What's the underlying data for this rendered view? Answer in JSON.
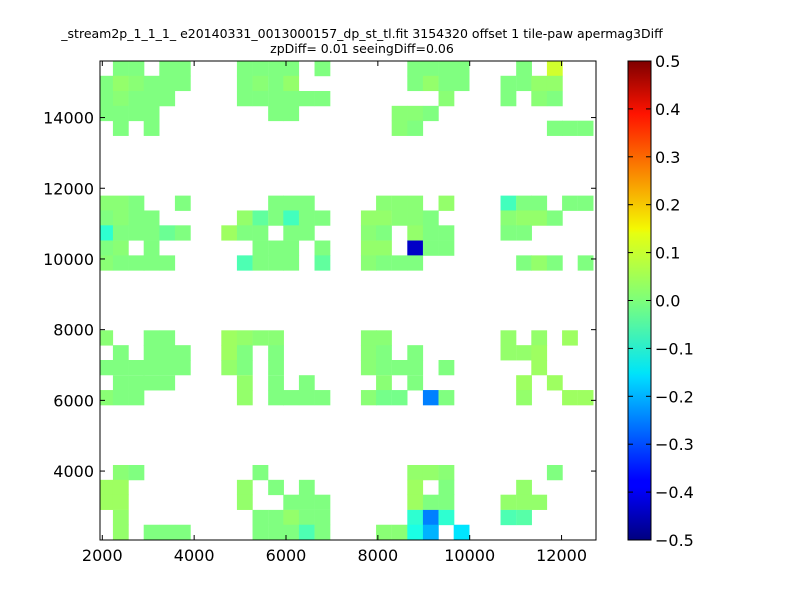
{
  "chart_data": {
    "type": "heatmap",
    "title_line1": "_stream2p_1_1_1_ e20140331_0013000157_dp_st_tl.fit 3154320 offset 1 tile-paw apermag3Diff",
    "title_line2": "zpDiff= 0.01 seeingDiff=0.06",
    "xlabel": "",
    "ylabel": "",
    "xlim": [
      1950,
      12750
    ],
    "ylim": [
      2050,
      15600
    ],
    "x_ticks": [
      2000,
      4000,
      6000,
      8000,
      10000,
      12000
    ],
    "y_ticks": [
      4000,
      6000,
      8000,
      10000,
      12000,
      14000
    ],
    "cell_width": 337.5,
    "cell_height": 423.5,
    "colorbar": {
      "colormap": "jet",
      "range": [
        -0.5,
        0.5
      ],
      "ticks": [
        "0.5",
        "0.4",
        "0.3",
        "0.2",
        "0.1",
        "0.0",
        "−0.1",
        "−0.2",
        "−0.3",
        "−0.4",
        "−0.5"
      ]
    },
    "cells": [
      [
        2400,
        15390,
        0.0
      ],
      [
        2740,
        15390,
        0.0
      ],
      [
        3410,
        15390,
        0.0
      ],
      [
        3750,
        15390,
        0.0
      ],
      [
        5100,
        15390,
        0.0
      ],
      [
        5440,
        15390,
        0.0
      ],
      [
        5780,
        15390,
        0.0
      ],
      [
        6110,
        15390,
        0.0
      ],
      [
        6790,
        15390,
        0.0
      ],
      [
        8810,
        15390,
        0.0
      ],
      [
        9150,
        15390,
        0.0
      ],
      [
        9490,
        15390,
        0.0
      ],
      [
        9820,
        15390,
        0.0
      ],
      [
        11180,
        15390,
        0.0
      ],
      [
        11850,
        15390,
        0.08
      ],
      [
        2060,
        14970,
        0.0
      ],
      [
        2400,
        14970,
        0.02
      ],
      [
        2740,
        14970,
        0.01
      ],
      [
        3070,
        14970,
        0.0
      ],
      [
        3410,
        14970,
        0.0
      ],
      [
        3750,
        14970,
        0.0
      ],
      [
        5100,
        14970,
        0.0
      ],
      [
        5440,
        14970,
        0.01
      ],
      [
        5780,
        14970,
        0.0
      ],
      [
        6110,
        14970,
        0.02
      ],
      [
        8810,
        14970,
        0.0
      ],
      [
        9150,
        14970,
        0.02
      ],
      [
        9490,
        14970,
        0.0
      ],
      [
        9820,
        14970,
        0.0
      ],
      [
        10840,
        14970,
        0.0
      ],
      [
        11180,
        14970,
        0.0
      ],
      [
        11510,
        14970,
        0.02
      ],
      [
        11850,
        14970,
        0.02
      ],
      [
        2060,
        14540,
        0.0
      ],
      [
        2400,
        14540,
        0.01
      ],
      [
        2740,
        14540,
        0.0
      ],
      [
        3070,
        14540,
        0.0
      ],
      [
        3410,
        14540,
        0.0
      ],
      [
        5100,
        14540,
        0.0
      ],
      [
        5440,
        14540,
        0.0
      ],
      [
        5780,
        14540,
        0.0
      ],
      [
        6110,
        14540,
        0.0
      ],
      [
        6450,
        14540,
        0.0
      ],
      [
        6790,
        14540,
        0.0
      ],
      [
        9490,
        14540,
        0.01
      ],
      [
        10840,
        14540,
        0.0
      ],
      [
        11510,
        14540,
        0.01
      ],
      [
        11850,
        14540,
        0.0
      ],
      [
        2060,
        14120,
        0.0
      ],
      [
        2400,
        14120,
        0.0
      ],
      [
        2740,
        14120,
        0.0
      ],
      [
        3070,
        14120,
        0.0
      ],
      [
        5780,
        14120,
        0.0
      ],
      [
        6110,
        14120,
        0.0
      ],
      [
        8470,
        14120,
        0.01
      ],
      [
        8810,
        14120,
        0.01
      ],
      [
        9150,
        14120,
        0.0
      ],
      [
        2400,
        13700,
        0.0
      ],
      [
        3070,
        13700,
        0.0
      ],
      [
        8470,
        13700,
        0.01
      ],
      [
        8810,
        13700,
        0.0
      ],
      [
        11850,
        13700,
        0.0
      ],
      [
        12180,
        13700,
        0.0
      ],
      [
        12520,
        13700,
        0.0
      ],
      [
        2060,
        11580,
        0.01
      ],
      [
        2400,
        11580,
        0.01
      ],
      [
        2740,
        11580,
        0.0
      ],
      [
        3750,
        11580,
        0.0
      ],
      [
        5780,
        11580,
        0.0
      ],
      [
        6110,
        11580,
        0.0
      ],
      [
        6450,
        11580,
        0.0
      ],
      [
        8130,
        11580,
        0.01
      ],
      [
        8470,
        11580,
        0.01
      ],
      [
        8810,
        11580,
        0.01
      ],
      [
        9490,
        11580,
        0.02
      ],
      [
        10840,
        11580,
        -0.06
      ],
      [
        11180,
        11580,
        0.0
      ],
      [
        11510,
        11580,
        0.0
      ],
      [
        12180,
        11580,
        0.0
      ],
      [
        12520,
        11580,
        0.0
      ],
      [
        2060,
        11160,
        0.0
      ],
      [
        2400,
        11160,
        0.01
      ],
      [
        2740,
        11160,
        0.0
      ],
      [
        3070,
        11160,
        0.0
      ],
      [
        5100,
        11160,
        0.02
      ],
      [
        5440,
        11160,
        -0.03
      ],
      [
        5780,
        11160,
        0.0
      ],
      [
        6110,
        11160,
        -0.06
      ],
      [
        6450,
        11160,
        0.0
      ],
      [
        6790,
        11160,
        0.0
      ],
      [
        7800,
        11160,
        0.02
      ],
      [
        8130,
        11160,
        0.02
      ],
      [
        8470,
        11160,
        0.01
      ],
      [
        8810,
        11160,
        0.01
      ],
      [
        9150,
        11160,
        0.0
      ],
      [
        10840,
        11160,
        0.01
      ],
      [
        11180,
        11160,
        0.02
      ],
      [
        11510,
        11160,
        0.02
      ],
      [
        11850,
        11160,
        0.0
      ],
      [
        2060,
        10740,
        -0.08
      ],
      [
        2400,
        10740,
        0.0
      ],
      [
        2740,
        10740,
        0.0
      ],
      [
        3070,
        10740,
        0.0
      ],
      [
        3410,
        10740,
        -0.02
      ],
      [
        3750,
        10740,
        0.0
      ],
      [
        4760,
        10740,
        0.03
      ],
      [
        5100,
        10740,
        0.0
      ],
      [
        5440,
        10740,
        0.0
      ],
      [
        6110,
        10740,
        0.0
      ],
      [
        6450,
        10740,
        0.0
      ],
      [
        7800,
        10740,
        0.01
      ],
      [
        8130,
        10740,
        0.0
      ],
      [
        8810,
        10740,
        0.02
      ],
      [
        9150,
        10740,
        0.0
      ],
      [
        9490,
        10740,
        0.0
      ],
      [
        10840,
        10740,
        0.0
      ],
      [
        11180,
        10740,
        0.0
      ],
      [
        2060,
        10310,
        0.0
      ],
      [
        2400,
        10310,
        0.01
      ],
      [
        3070,
        10310,
        0.0
      ],
      [
        5440,
        10310,
        0.0
      ],
      [
        5780,
        10310,
        0.0
      ],
      [
        6110,
        10310,
        0.0
      ],
      [
        6790,
        10310,
        0.0
      ],
      [
        7800,
        10310,
        0.02
      ],
      [
        8130,
        10310,
        0.02
      ],
      [
        8810,
        10310,
        -0.43
      ],
      [
        9150,
        10310,
        0.0
      ],
      [
        9490,
        10310,
        0.0
      ],
      [
        2060,
        9890,
        0.01
      ],
      [
        2400,
        9890,
        0.0
      ],
      [
        2740,
        9890,
        0.0
      ],
      [
        3070,
        9890,
        0.0
      ],
      [
        3410,
        9890,
        0.0
      ],
      [
        5100,
        9890,
        -0.05
      ],
      [
        5440,
        9890,
        0.0
      ],
      [
        5780,
        9890,
        0.0
      ],
      [
        6110,
        9890,
        0.0
      ],
      [
        6790,
        9890,
        -0.03
      ],
      [
        7800,
        9890,
        0.01
      ],
      [
        8130,
        9890,
        0.0
      ],
      [
        8470,
        9890,
        0.0
      ],
      [
        8810,
        9890,
        0.0
      ],
      [
        11180,
        9890,
        0.0
      ],
      [
        11510,
        9890,
        0.02
      ],
      [
        11850,
        9890,
        0.0
      ],
      [
        12520,
        9890,
        0.0
      ],
      [
        2060,
        7770,
        0.01
      ],
      [
        3070,
        7770,
        0.0
      ],
      [
        3410,
        7770,
        0.0
      ],
      [
        4760,
        7770,
        0.03
      ],
      [
        5100,
        7770,
        0.02
      ],
      [
        5440,
        7770,
        0.01
      ],
      [
        5780,
        7770,
        0.01
      ],
      [
        7800,
        7770,
        0.01
      ],
      [
        8130,
        7770,
        0.01
      ],
      [
        10840,
        7770,
        0.02
      ],
      [
        11510,
        7770,
        0.02
      ],
      [
        12180,
        7770,
        0.03
      ],
      [
        2400,
        7350,
        0.0
      ],
      [
        3070,
        7350,
        0.0
      ],
      [
        3410,
        7350,
        0.0
      ],
      [
        3750,
        7350,
        0.0
      ],
      [
        4760,
        7350,
        0.03
      ],
      [
        5100,
        7350,
        0.0
      ],
      [
        5780,
        7350,
        0.0
      ],
      [
        7800,
        7350,
        0.01
      ],
      [
        8130,
        7350,
        0.0
      ],
      [
        8810,
        7350,
        0.0
      ],
      [
        10840,
        7350,
        0.02
      ],
      [
        11180,
        7350,
        0.02
      ],
      [
        11510,
        7350,
        0.03
      ],
      [
        2060,
        6930,
        0.0
      ],
      [
        2400,
        6930,
        0.0
      ],
      [
        2740,
        6930,
        0.0
      ],
      [
        3070,
        6930,
        0.0
      ],
      [
        3410,
        6930,
        0.0
      ],
      [
        3750,
        6930,
        0.0
      ],
      [
        4760,
        6930,
        0.02
      ],
      [
        5100,
        6930,
        0.0
      ],
      [
        5780,
        6930,
        0.0
      ],
      [
        7800,
        6930,
        0.01
      ],
      [
        8130,
        6930,
        0.0
      ],
      [
        8470,
        6930,
        0.0
      ],
      [
        8810,
        6930,
        0.0
      ],
      [
        9490,
        6930,
        0.0
      ],
      [
        11510,
        6930,
        0.03
      ],
      [
        2400,
        6500,
        0.0
      ],
      [
        2740,
        6500,
        0.0
      ],
      [
        3070,
        6500,
        0.0
      ],
      [
        3410,
        6500,
        0.0
      ],
      [
        5100,
        6500,
        0.02
      ],
      [
        5780,
        6500,
        0.0
      ],
      [
        6450,
        6500,
        0.0
      ],
      [
        8130,
        6500,
        0.01
      ],
      [
        8810,
        6500,
        0.0
      ],
      [
        11180,
        6500,
        0.03
      ],
      [
        11850,
        6500,
        0.03
      ],
      [
        2060,
        6080,
        0.01
      ],
      [
        2400,
        6080,
        0.0
      ],
      [
        2740,
        6080,
        0.0
      ],
      [
        5100,
        6080,
        0.02
      ],
      [
        5780,
        6080,
        0.0
      ],
      [
        6110,
        6080,
        0.0
      ],
      [
        6450,
        6080,
        0.0
      ],
      [
        6790,
        6080,
        0.0
      ],
      [
        7800,
        6080,
        0.01
      ],
      [
        8130,
        6080,
        -0.01
      ],
      [
        8470,
        6080,
        -0.01
      ],
      [
        9150,
        6080,
        -0.25
      ],
      [
        9490,
        6080,
        0.0
      ],
      [
        11180,
        6080,
        0.02
      ],
      [
        12180,
        6080,
        0.03
      ],
      [
        12520,
        6080,
        0.03
      ],
      [
        2400,
        3960,
        0.01
      ],
      [
        2740,
        3960,
        0.0
      ],
      [
        5440,
        3960,
        0.0
      ],
      [
        8810,
        3960,
        0.02
      ],
      [
        9150,
        3960,
        0.02
      ],
      [
        9490,
        3960,
        0.01
      ],
      [
        11850,
        3960,
        0.0
      ],
      [
        2060,
        3540,
        0.03
      ],
      [
        2400,
        3540,
        0.03
      ],
      [
        5100,
        3540,
        0.02
      ],
      [
        5780,
        3540,
        0.0
      ],
      [
        6450,
        3540,
        0.0
      ],
      [
        8810,
        3540,
        0.03
      ],
      [
        9490,
        3540,
        0.0
      ],
      [
        11180,
        3540,
        0.02
      ],
      [
        2060,
        3120,
        0.03
      ],
      [
        2400,
        3120,
        0.03
      ],
      [
        5100,
        3120,
        0.02
      ],
      [
        6110,
        3120,
        0.0
      ],
      [
        6450,
        3120,
        0.0
      ],
      [
        6790,
        3120,
        0.0
      ],
      [
        8810,
        3120,
        0.03
      ],
      [
        9150,
        3120,
        0.0
      ],
      [
        9490,
        3120,
        0.0
      ],
      [
        10840,
        3120,
        0.02
      ],
      [
        11180,
        3120,
        0.02
      ],
      [
        11510,
        3120,
        0.02
      ],
      [
        2400,
        2690,
        0.02
      ],
      [
        5440,
        2690,
        0.0
      ],
      [
        5780,
        2690,
        0.0
      ],
      [
        6110,
        2690,
        0.02
      ],
      [
        6450,
        2690,
        0.0
      ],
      [
        6790,
        2690,
        0.0
      ],
      [
        8810,
        2690,
        -0.08
      ],
      [
        9150,
        2690,
        -0.25
      ],
      [
        9490,
        2690,
        -0.08
      ],
      [
        10840,
        2690,
        -0.05
      ],
      [
        11180,
        2690,
        -0.04
      ],
      [
        2400,
        2270,
        0.02
      ],
      [
        3070,
        2270,
        0.0
      ],
      [
        3410,
        2270,
        0.0
      ],
      [
        3750,
        2270,
        0.0
      ],
      [
        5440,
        2270,
        0.0
      ],
      [
        5780,
        2270,
        0.0
      ],
      [
        6110,
        2270,
        0.0
      ],
      [
        6450,
        2270,
        -0.05
      ],
      [
        6790,
        2270,
        0.0
      ],
      [
        8130,
        2270,
        0.01
      ],
      [
        8470,
        2270,
        0.01
      ],
      [
        8810,
        2270,
        -0.1
      ],
      [
        9150,
        2270,
        -0.2
      ],
      [
        9820,
        2270,
        -0.15
      ]
    ]
  }
}
